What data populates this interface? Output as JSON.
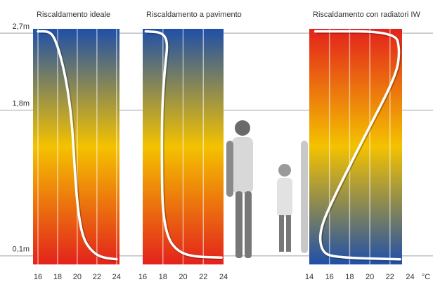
{
  "chart_data": [
    {
      "type": "line",
      "title": "Riscaldamento ideale",
      "colors": [
        "#1f4fa8",
        "#f4c200",
        "#e3221c"
      ],
      "ylim": [
        0,
        2.75
      ],
      "yticks": [
        {
          "value": 0.1,
          "label": "0,1m"
        },
        {
          "value": 1.8,
          "label": "1,8m"
        },
        {
          "value": 2.7,
          "label": "2,7m"
        }
      ],
      "xlim": [
        15.5,
        24.3
      ],
      "xticks": [
        16,
        18,
        20,
        22,
        24
      ],
      "series": [
        {
          "color": "#ffffff",
          "x": [
            16.0,
            17.2,
            17.8,
            18.5,
            19.1,
            19.5,
            19.8,
            20.1,
            20.6,
            21.5,
            22.5,
            24.0
          ],
          "values": [
            2.72,
            2.72,
            2.62,
            2.35,
            2.0,
            1.6,
            1.0,
            0.6,
            0.3,
            0.15,
            0.08,
            0.06
          ]
        }
      ]
    },
    {
      "type": "line",
      "title": "Riscaldamento a pavimento",
      "colors": [
        "#1f4fa8",
        "#f4c200",
        "#e3221c"
      ],
      "ylim": [
        0,
        2.75
      ],
      "xlim": [
        16,
        24
      ],
      "xticks": [
        16,
        18,
        20,
        22,
        24
      ],
      "series": [
        {
          "color": "#ffffff",
          "x": [
            16.3,
            17.9,
            18.5,
            18.2,
            17.9,
            17.9,
            18.0,
            18.5,
            19.5,
            21.0,
            23.8
          ],
          "values": [
            2.72,
            2.71,
            2.6,
            2.3,
            1.8,
            1.0,
            0.6,
            0.3,
            0.15,
            0.09,
            0.08
          ]
        }
      ]
    },
    {
      "type": "line",
      "title": "Riscaldamento con radiatori IW",
      "colors": [
        "#e3221c",
        "#f4c200",
        "#1f4fa8"
      ],
      "ylim": [
        0,
        2.75
      ],
      "xlim": [
        14,
        23.2
      ],
      "xticks": [
        14,
        16,
        18,
        20,
        22,
        24
      ],
      "x_label": "°C",
      "series": [
        {
          "color": "#ffffff",
          "x": [
            14.6,
            22.5,
            23.0,
            22.6,
            19.5,
            16.5,
            15.0,
            15.2,
            16.5,
            23.0
          ],
          "values": [
            2.72,
            2.72,
            2.5,
            2.2,
            1.5,
            0.8,
            0.4,
            0.15,
            0.08,
            0.06
          ]
        }
      ]
    }
  ]
}
